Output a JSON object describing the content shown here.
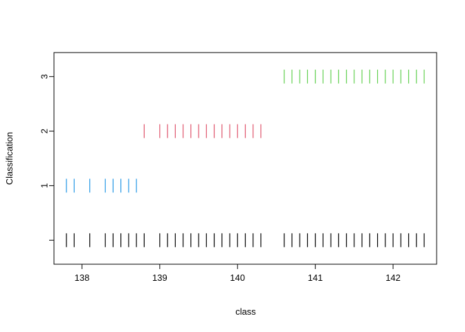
{
  "chart_data": {
    "type": "scatter",
    "title": "",
    "xlabel": "class",
    "ylabel": "Classification",
    "xlim": [
      137.64,
      142.56
    ],
    "ylim": [
      -0.44,
      3.44
    ],
    "x_ticks": [
      "138",
      "139",
      "140",
      "141",
      "142"
    ],
    "y_ticks": [
      {
        "value": 0,
        "label": ""
      },
      {
        "value": 1,
        "label": "1"
      },
      {
        "value": 2,
        "label": "2"
      },
      {
        "value": 3,
        "label": "3"
      }
    ],
    "grid": false,
    "legend": "none",
    "marker": "vertical-bar",
    "series": [
      {
        "y": 0,
        "color": "#000000",
        "x": [
          137.8,
          137.9,
          138.1,
          138.3,
          138.4,
          138.5,
          138.6,
          138.7,
          138.8,
          139.0,
          139.1,
          139.2,
          139.3,
          139.4,
          139.5,
          139.6,
          139.7,
          139.8,
          139.9,
          140.0,
          140.1,
          140.2,
          140.3,
          140.6,
          140.7,
          140.8,
          140.9,
          141.0,
          141.1,
          141.2,
          141.3,
          141.4,
          141.5,
          141.6,
          141.7,
          141.8,
          141.9,
          142.0,
          142.1,
          142.2,
          142.3,
          142.4
        ]
      },
      {
        "y": 1,
        "color": "#2297E6",
        "x": [
          137.8,
          137.9,
          138.1,
          138.3,
          138.4,
          138.5,
          138.6,
          138.7
        ]
      },
      {
        "y": 2,
        "color": "#DF536B",
        "x": [
          138.8,
          139.0,
          139.1,
          139.2,
          139.3,
          139.4,
          139.5,
          139.6,
          139.7,
          139.8,
          139.9,
          140.0,
          140.1,
          140.2,
          140.3
        ]
      },
      {
        "y": 3,
        "color": "#61D04F",
        "x": [
          140.6,
          140.7,
          140.8,
          140.9,
          141.0,
          141.1,
          141.2,
          141.3,
          141.4,
          141.5,
          141.6,
          141.7,
          141.8,
          141.9,
          142.0,
          142.1,
          142.2,
          142.3,
          142.4
        ]
      }
    ]
  }
}
